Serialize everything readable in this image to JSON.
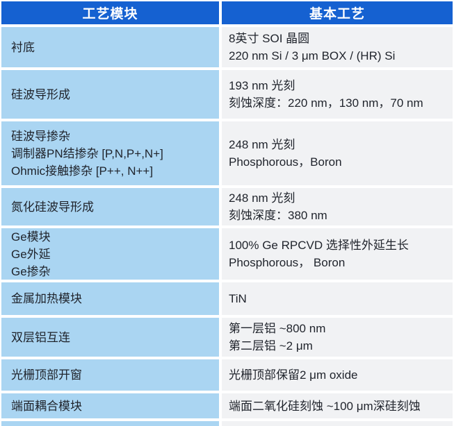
{
  "table": {
    "title_row": {
      "col1": "工艺模块",
      "col2": "基本工艺"
    },
    "rows": [
      {
        "module": [
          "衬底"
        ],
        "process": [
          "8英寸 SOI 晶圆",
          "220 nm Si / 3 μm BOX / (HR) Si"
        ]
      },
      {
        "module": [
          "硅波导形成"
        ],
        "process": [
          "193 nm 光刻",
          "刻蚀深度：220 nm，130 nm，70 nm"
        ]
      },
      {
        "module": [
          "硅波导掺杂",
          "调制器PN结掺杂 [P,N,P+,N+]",
          "Ohmic接触掺杂 [P++, N++]"
        ],
        "process": [
          "248 nm 光刻",
          "Phosphorous，Boron"
        ]
      },
      {
        "module": [
          "氮化硅波导形成"
        ],
        "process": [
          "248 nm 光刻",
          "刻蚀深度：380 nm"
        ]
      },
      {
        "module": [
          "Ge模块",
          "Ge外延",
          "Ge掺杂"
        ],
        "process": [
          "100% Ge RPCVD 选择性外延生长",
          "Phosphorous， Boron"
        ]
      },
      {
        "module": [
          "金属加热模块"
        ],
        "process": [
          "TiN"
        ]
      },
      {
        "module": [
          "双层铝互连"
        ],
        "process": [
          "第一层铝 ~800 nm",
          "第二层铝 ~2 μm"
        ]
      },
      {
        "module": [
          "光栅顶部开窗"
        ],
        "process": [
          "光栅顶部保留2 μm oxide"
        ]
      },
      {
        "module": [
          "端面耦合模块"
        ],
        "process": [
          "端面二氧化硅刻蚀 ~100 μm深硅刻蚀"
        ]
      }
    ]
  },
  "colors": {
    "header_bg": "#1561d1",
    "header_text": "#ffffff",
    "module_bg": "#aad5f2",
    "process_bg": "#f1f2f4",
    "body_text": "#1f232b",
    "gap": "#ffffff"
  }
}
